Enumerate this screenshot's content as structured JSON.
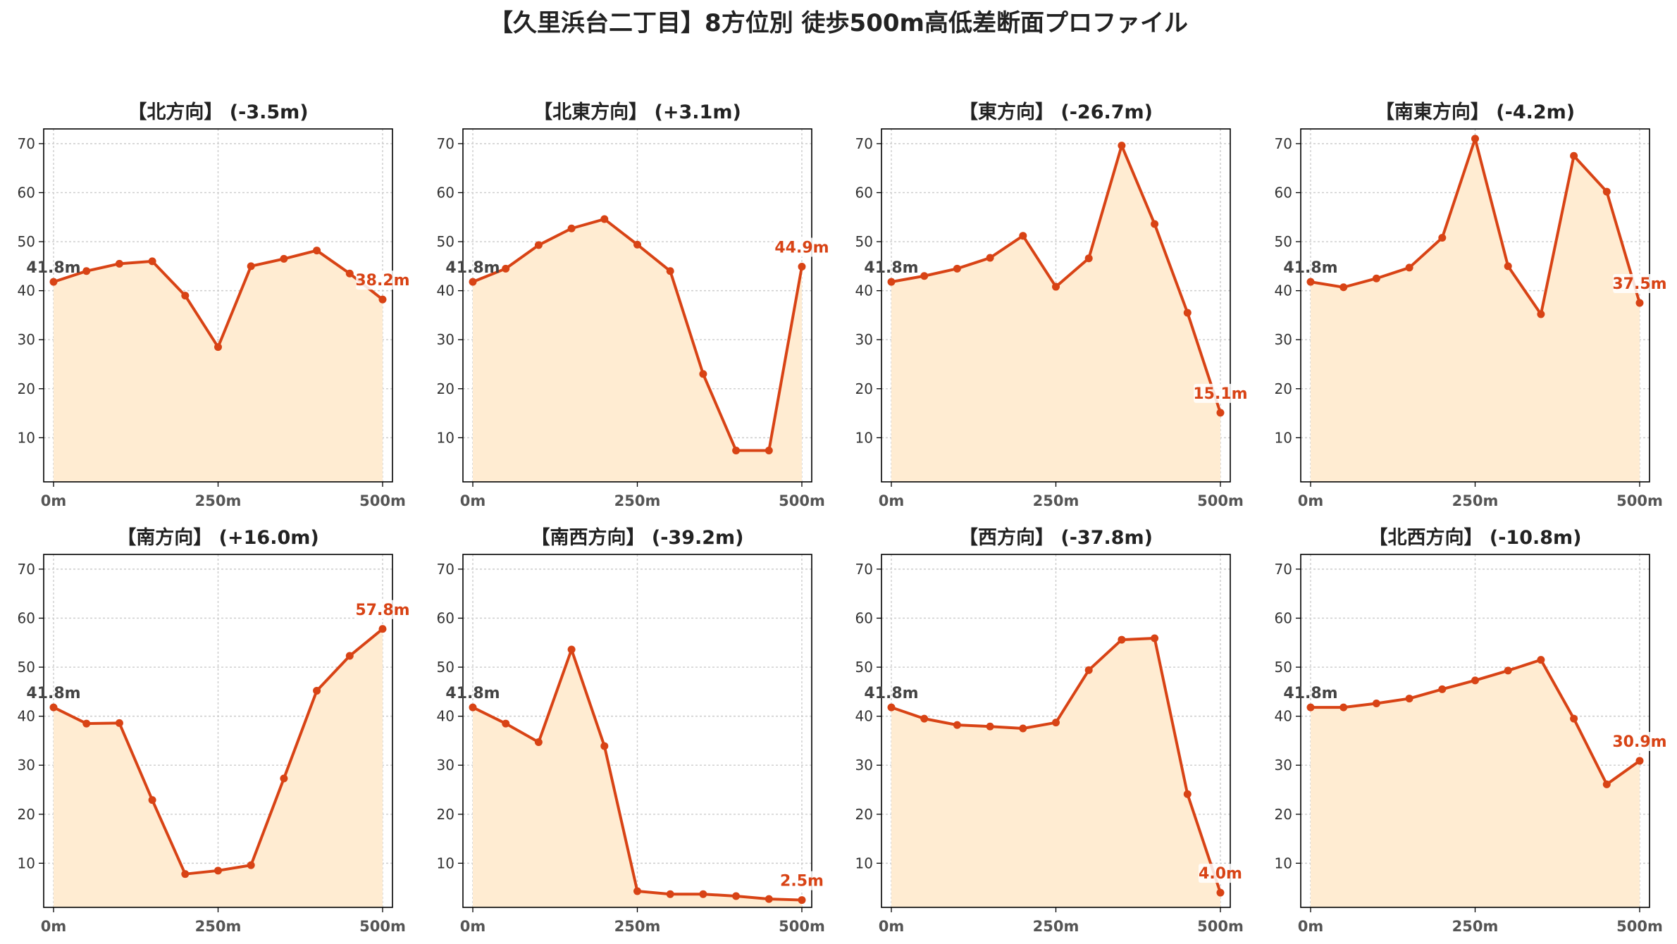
{
  "suptitle": "【久里浜台二丁目】8方位別 徒歩500m高低差断面プロファイル",
  "colors": {
    "line": "#d84315",
    "fill": "#ffecd2",
    "grid": "#cccccc",
    "axis": "#000000",
    "start_label": "#444444",
    "end_label": "#d84315"
  },
  "chart_data": [
    {
      "type": "area",
      "title": "【北方向】 (-3.5m)",
      "x": [
        0,
        50,
        100,
        150,
        200,
        250,
        300,
        350,
        400,
        450,
        500
      ],
      "values": [
        41.8,
        44.0,
        45.5,
        46.0,
        39.0,
        28.5,
        45.0,
        46.5,
        48.2,
        43.5,
        38.2
      ],
      "start_label": "41.8m",
      "end_label": "38.2m",
      "xticks": [
        "0m",
        "250m",
        "500m"
      ],
      "yticks": [
        10,
        20,
        30,
        40,
        50,
        60,
        70
      ],
      "xlim": [
        -15,
        515
      ],
      "ylim": [
        1,
        73
      ],
      "grid": true
    },
    {
      "type": "area",
      "title": "【北東方向】 (+3.1m)",
      "x": [
        0,
        50,
        100,
        150,
        200,
        250,
        300,
        350,
        400,
        450,
        500
      ],
      "values": [
        41.8,
        44.5,
        49.3,
        52.7,
        54.6,
        49.4,
        44.0,
        23.0,
        7.4,
        7.4,
        44.9
      ],
      "start_label": "41.8m",
      "end_label": "44.9m",
      "xticks": [
        "0m",
        "250m",
        "500m"
      ],
      "yticks": [
        10,
        20,
        30,
        40,
        50,
        60,
        70
      ],
      "xlim": [
        -15,
        515
      ],
      "ylim": [
        1,
        73
      ],
      "grid": true
    },
    {
      "type": "area",
      "title": "【東方向】 (-26.7m)",
      "x": [
        0,
        50,
        100,
        150,
        200,
        250,
        300,
        350,
        400,
        450,
        500
      ],
      "values": [
        41.8,
        43.0,
        44.5,
        46.7,
        51.2,
        40.8,
        46.6,
        69.6,
        53.6,
        35.5,
        15.1
      ],
      "start_label": "41.8m",
      "end_label": "15.1m",
      "xticks": [
        "0m",
        "250m",
        "500m"
      ],
      "yticks": [
        10,
        20,
        30,
        40,
        50,
        60,
        70
      ],
      "xlim": [
        -15,
        515
      ],
      "ylim": [
        1,
        73
      ],
      "grid": true
    },
    {
      "type": "area",
      "title": "【南東方向】 (-4.2m)",
      "x": [
        0,
        50,
        100,
        150,
        200,
        250,
        300,
        350,
        400,
        450,
        500
      ],
      "values": [
        41.8,
        40.7,
        42.5,
        44.7,
        50.8,
        71.0,
        45.0,
        35.2,
        67.5,
        60.2,
        37.5
      ],
      "start_label": "41.8m",
      "end_label": "37.5m",
      "xticks": [
        "0m",
        "250m",
        "500m"
      ],
      "yticks": [
        10,
        20,
        30,
        40,
        50,
        60,
        70
      ],
      "xlim": [
        -15,
        515
      ],
      "ylim": [
        1,
        73
      ],
      "grid": true
    },
    {
      "type": "area",
      "title": "【南方向】 (+16.0m)",
      "x": [
        0,
        50,
        100,
        150,
        200,
        250,
        300,
        350,
        400,
        450,
        500
      ],
      "values": [
        41.8,
        38.5,
        38.6,
        22.9,
        7.8,
        8.5,
        9.6,
        27.3,
        45.2,
        52.3,
        57.8
      ],
      "start_label": "41.8m",
      "end_label": "57.8m",
      "xticks": [
        "0m",
        "250m",
        "500m"
      ],
      "yticks": [
        10,
        20,
        30,
        40,
        50,
        60,
        70
      ],
      "xlim": [
        -15,
        515
      ],
      "ylim": [
        1,
        73
      ],
      "grid": true
    },
    {
      "type": "area",
      "title": "【南西方向】 (-39.2m)",
      "x": [
        0,
        50,
        100,
        150,
        200,
        250,
        300,
        350,
        400,
        450,
        500
      ],
      "values": [
        41.8,
        38.5,
        34.7,
        53.6,
        33.9,
        4.3,
        3.7,
        3.7,
        3.3,
        2.7,
        2.5
      ],
      "start_label": "41.8m",
      "end_label": "2.5m",
      "xticks": [
        "0m",
        "250m",
        "500m"
      ],
      "yticks": [
        10,
        20,
        30,
        40,
        50,
        60,
        70
      ],
      "xlim": [
        -15,
        515
      ],
      "ylim": [
        1,
        73
      ],
      "grid": true
    },
    {
      "type": "area",
      "title": "【西方向】 (-37.8m)",
      "x": [
        0,
        50,
        100,
        150,
        200,
        250,
        300,
        350,
        400,
        450,
        500
      ],
      "values": [
        41.8,
        39.5,
        38.2,
        37.9,
        37.5,
        38.7,
        49.4,
        55.6,
        55.9,
        24.1,
        4.0
      ],
      "start_label": "41.8m",
      "end_label": "4.0m",
      "xticks": [
        "0m",
        "250m",
        "500m"
      ],
      "yticks": [
        10,
        20,
        30,
        40,
        50,
        60,
        70
      ],
      "xlim": [
        -15,
        515
      ],
      "ylim": [
        1,
        73
      ],
      "grid": true
    },
    {
      "type": "area",
      "title": "【北西方向】 (-10.8m)",
      "x": [
        0,
        50,
        100,
        150,
        200,
        250,
        300,
        350,
        400,
        450,
        500
      ],
      "values": [
        41.8,
        41.8,
        42.6,
        43.6,
        45.5,
        47.3,
        49.3,
        51.5,
        39.5,
        26.1,
        30.9
      ],
      "start_label": "41.8m",
      "end_label": "30.9m",
      "xticks": [
        "0m",
        "250m",
        "500m"
      ],
      "yticks": [
        10,
        20,
        30,
        40,
        50,
        60,
        70
      ],
      "xlim": [
        -15,
        515
      ],
      "ylim": [
        1,
        73
      ],
      "grid": true
    }
  ]
}
